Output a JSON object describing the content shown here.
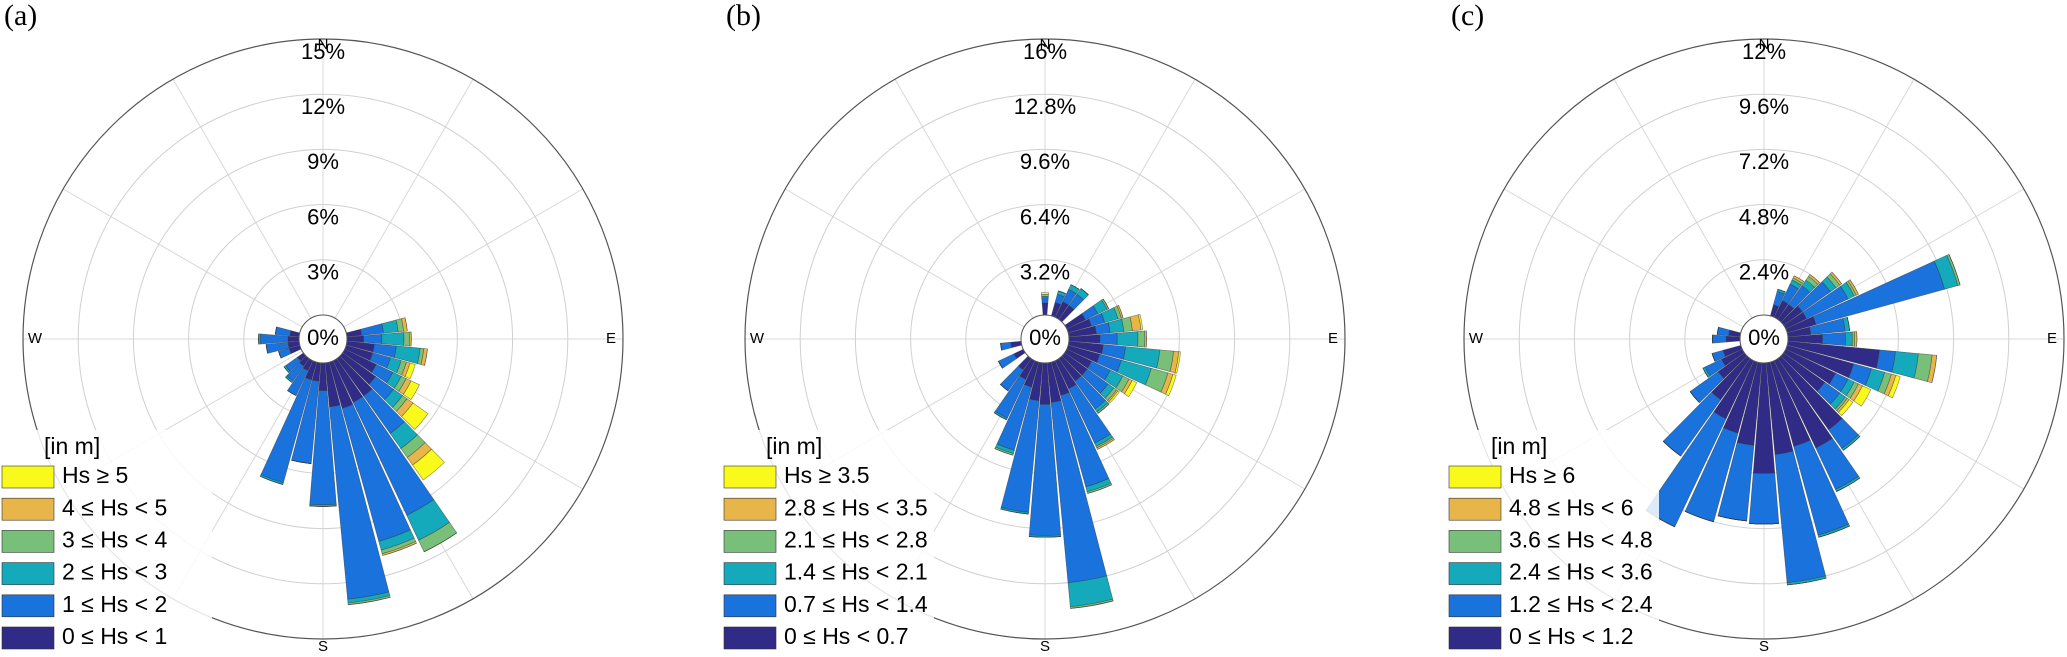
{
  "chart_data": [
    {
      "type": "windrose",
      "label": "(a)",
      "compass": [
        "N",
        "E",
        "S",
        "W"
      ],
      "rlim": [
        0,
        15
      ],
      "rticks": [
        {
          "value": 0,
          "label": "0%"
        },
        {
          "value": 3,
          "label": "3%"
        },
        {
          "value": 6,
          "label": "6%"
        },
        {
          "value": 9,
          "label": "9%"
        },
        {
          "value": 12,
          "label": "12%"
        },
        {
          "value": 15,
          "label": "15%"
        }
      ],
      "legend_title": "[in m]",
      "directions": [
        80,
        90,
        100,
        110,
        120,
        130,
        140,
        150,
        160,
        170,
        180,
        190,
        200,
        210,
        220,
        230,
        250,
        260,
        270,
        280
      ],
      "series": [
        {
          "name": "Hs ≥ 5",
          "color": "#f9f91c",
          "values": [
            0,
            0,
            0,
            0.3,
            0.5,
            1.0,
            1.0,
            0,
            0,
            0,
            0,
            0,
            0,
            0,
            0,
            0,
            0,
            0,
            0,
            0
          ]
        },
        {
          "name": "4 ≤ Hs < 5",
          "color": "#e7b54a",
          "values": [
            0.2,
            0.1,
            0.2,
            0.2,
            0.3,
            0.4,
            0.5,
            0,
            0.1,
            0,
            0,
            0,
            0,
            0,
            0,
            0,
            0,
            0,
            0,
            0
          ]
        },
        {
          "name": "3 ≤ Hs < 4",
          "color": "#78bf79",
          "values": [
            0.3,
            0.3,
            0.2,
            0.3,
            0.3,
            0.3,
            0.6,
            0.7,
            0.2,
            0.1,
            0,
            0,
            0,
            0,
            0,
            0,
            0,
            0,
            0,
            0
          ]
        },
        {
          "name": "2 ≤ Hs < 3",
          "color": "#14a9bb",
          "values": [
            0.8,
            1.2,
            1.3,
            0.6,
            0.5,
            0.6,
            1.0,
            1.5,
            0.5,
            0.2,
            0.1,
            0,
            0.1,
            0,
            0.1,
            0.1,
            0,
            0,
            0.1,
            0
          ]
        },
        {
          "name": "1 ≤ Hs < 2",
          "color": "#1a72dc",
          "values": [
            1.2,
            1.0,
            1.2,
            1.0,
            1.0,
            1.2,
            2.5,
            6.8,
            7.5,
            10.5,
            6.2,
            4.5,
            5.8,
            1.5,
            1.0,
            0.8,
            0.6,
            1.2,
            1.5,
            0.8
          ]
        },
        {
          "name": "0 ≤ Hs < 1",
          "color": "#2f2b87",
          "values": [
            0.8,
            0.9,
            1.5,
            1.5,
            1.9,
            2.2,
            2.5,
            2.5,
            2.6,
            2.4,
            1.5,
            1.0,
            1.0,
            0.6,
            0.5,
            0.4,
            0.6,
            0.6,
            0.6,
            0.5
          ]
        }
      ]
    },
    {
      "type": "windrose",
      "label": "(b)",
      "compass": [
        "N",
        "E",
        "S",
        "W"
      ],
      "rlim": [
        0,
        16
      ],
      "rticks": [
        {
          "value": 0,
          "label": "0%"
        },
        {
          "value": 3.2,
          "label": "3.2%"
        },
        {
          "value": 6.4,
          "label": "6.4%"
        },
        {
          "value": 9.6,
          "label": "9.6%"
        },
        {
          "value": 12.8,
          "label": "12.8%"
        },
        {
          "value": 16,
          "label": "16%"
        }
      ],
      "legend_title": "[in m]",
      "directions": [
        0,
        20,
        30,
        40,
        60,
        70,
        80,
        90,
        100,
        110,
        120,
        130,
        140,
        150,
        160,
        170,
        180,
        190,
        200,
        210,
        220,
        240,
        260
      ],
      "series": [
        {
          "name": "Hs ≥ 3.5",
          "color": "#f9f91c",
          "values": [
            0.1,
            0,
            0,
            0,
            0,
            0,
            0.1,
            0,
            0.1,
            0.2,
            0.3,
            0.1,
            0,
            0,
            0,
            0,
            0,
            0,
            0,
            0,
            0,
            0,
            0
          ]
        },
        {
          "name": "2.8 ≤ Hs < 3.5",
          "color": "#e7b54a",
          "values": [
            0.1,
            0,
            0,
            0,
            0,
            0.1,
            0.5,
            0.1,
            0.3,
            0.3,
            0.2,
            0.1,
            0,
            0.1,
            0,
            0,
            0,
            0,
            0,
            0,
            0,
            0,
            0
          ]
        },
        {
          "name": "2.1 ≤ Hs < 2.8",
          "color": "#78bf79",
          "values": [
            0,
            0,
            0,
            0,
            0.1,
            0.2,
            0.5,
            0.4,
            0.8,
            1.0,
            0.4,
            0.2,
            0.1,
            0.1,
            0.1,
            0.1,
            0,
            0,
            0.1,
            0,
            0,
            0,
            0
          ]
        },
        {
          "name": "1.4 ≤ Hs < 2.1",
          "color": "#14a9bb",
          "values": [
            0.1,
            0.2,
            0.3,
            0.4,
            0.6,
            0.8,
            0.8,
            1.2,
            2.0,
            1.8,
            0.8,
            0.4,
            0.2,
            0.2,
            0.3,
            1.4,
            0.1,
            0.1,
            0.2,
            0.1,
            0,
            0,
            0
          ]
        },
        {
          "name": "0.7 ≤ Hs < 1.4",
          "color": "#1a72dc",
          "values": [
            0.3,
            0.5,
            0.8,
            0.8,
            0.8,
            0.8,
            0.8,
            1.0,
            1.3,
            1.3,
            1.2,
            1.5,
            2.0,
            3.5,
            5.5,
            10.5,
            7.6,
            6.5,
            3.8,
            2.5,
            1.5,
            1.0,
            0.6
          ]
        },
        {
          "name": "0 ≤ Hs < 0.7",
          "color": "#2f2b87",
          "values": [
            0.7,
            0.8,
            1.0,
            1.0,
            1.2,
            1.4,
            1.6,
            1.8,
            2.0,
            1.9,
            1.6,
            1.6,
            1.6,
            1.8,
            2.0,
            2.3,
            2.4,
            2.2,
            1.5,
            1.2,
            0.8,
            0.6,
            0.6
          ]
        }
      ]
    },
    {
      "type": "windrose",
      "label": "(c)",
      "compass": [
        "N",
        "E",
        "S",
        "W"
      ],
      "rlim": [
        0,
        12
      ],
      "rticks": [
        {
          "value": 0,
          "label": "0%"
        },
        {
          "value": 2.4,
          "label": "2.4%"
        },
        {
          "value": 4.8,
          "label": "4.8%"
        },
        {
          "value": 7.2,
          "label": "7.2%"
        },
        {
          "value": 9.6,
          "label": "9.6%"
        },
        {
          "value": 12,
          "label": "12%"
        }
      ],
      "legend_title": "[in m]",
      "directions": [
        20,
        30,
        40,
        50,
        60,
        70,
        80,
        90,
        100,
        110,
        120,
        130,
        140,
        150,
        160,
        170,
        180,
        190,
        200,
        210,
        220,
        230,
        240,
        250,
        270,
        280
      ],
      "series": [
        {
          "name": "Hs ≥ 6",
          "color": "#f9f91c",
          "values": [
            0,
            0,
            0,
            0,
            0,
            0,
            0,
            0,
            0,
            0.2,
            0.4,
            0.2,
            0,
            0,
            0,
            0,
            0,
            0,
            0,
            0,
            0,
            0,
            0,
            0,
            0,
            0
          ]
        },
        {
          "name": "4.8 ≤ Hs < 6",
          "color": "#e7b54a",
          "values": [
            0,
            0.1,
            0.1,
            0.1,
            0.1,
            0,
            0,
            0.1,
            0.2,
            0.2,
            0.2,
            0.1,
            0,
            0,
            0,
            0,
            0,
            0,
            0,
            0,
            0,
            0,
            0,
            0,
            0,
            0
          ]
        },
        {
          "name": "3.6 ≤ Hs < 4.8",
          "color": "#78bf79",
          "values": [
            0,
            0.1,
            0.2,
            0.2,
            0.1,
            0.1,
            0,
            0.1,
            0.6,
            0.3,
            0.2,
            0.1,
            0,
            0,
            0,
            0,
            0,
            0,
            0,
            0,
            0,
            0,
            0,
            0,
            0,
            0
          ]
        },
        {
          "name": "2.4 ≤ Hs < 3.6",
          "color": "#14a9bb",
          "values": [
            0.1,
            0.2,
            0.3,
            0.3,
            0.3,
            0.6,
            0.2,
            0.3,
            1.0,
            0.6,
            0.3,
            0.3,
            0.1,
            0.1,
            0.1,
            0.1,
            0,
            0,
            0,
            0,
            0,
            0,
            0.1,
            0,
            0,
            0
          ]
        },
        {
          "name": "1.2 ≤ Hs < 2.4",
          "color": "#1a72dc",
          "values": [
            0.6,
            0.8,
            1.0,
            1.5,
            2.0,
            5.8,
            1.5,
            1.0,
            0.7,
            0.8,
            0.6,
            0.8,
            1.0,
            2.0,
            4.0,
            5.6,
            2.2,
            3.3,
            4.0,
            5.2,
            3.0,
            1.5,
            0.8,
            0.5,
            0.6,
            0.5
          ]
        },
        {
          "name": "0 ≤ Hs < 1.2",
          "color": "#2f2b87",
          "values": [
            0.5,
            0.8,
            0.8,
            1.0,
            1.0,
            1.3,
            1.0,
            1.5,
            4.0,
            3.0,
            2.4,
            2.2,
            3.8,
            4.2,
            3.8,
            4.0,
            4.8,
            3.6,
            3.2,
            2.8,
            2.2,
            1.4,
            1.0,
            0.8,
            0.6,
            0.5
          ]
        }
      ]
    }
  ]
}
